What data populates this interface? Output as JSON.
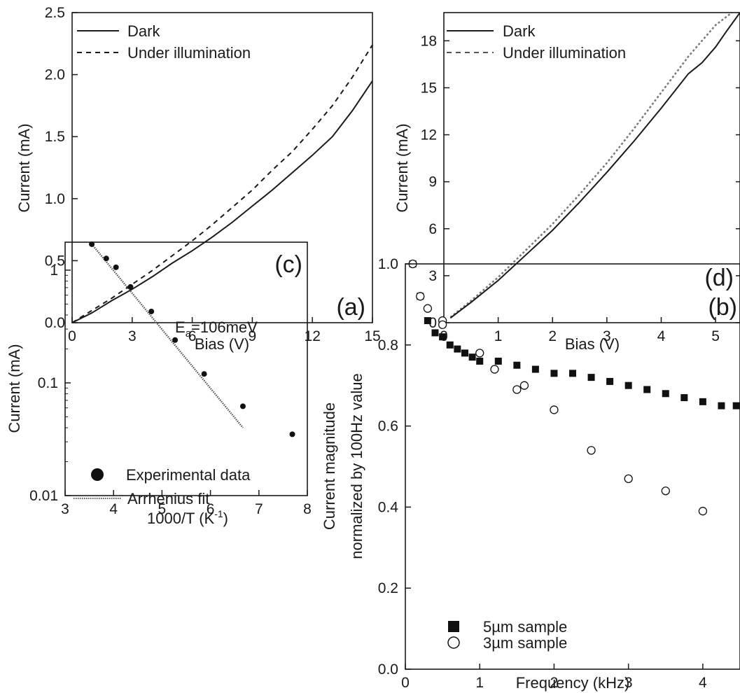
{
  "chart_data": [
    {
      "panel": "(a)",
      "type": "line",
      "xlabel": "Bias (V)",
      "ylabel": "Current (mA)",
      "xlim": [
        0,
        15
      ],
      "ylim": [
        0,
        2.5
      ],
      "xticks": [
        0,
        3,
        6,
        9,
        12,
        15
      ],
      "yticks": [
        0.0,
        0.5,
        1.0,
        1.5,
        2.0,
        2.5
      ],
      "xtick_labels": [
        "0",
        "3",
        "6",
        "9",
        "12",
        "15"
      ],
      "ytick_labels": [
        "0.0",
        "0.5",
        "1.0",
        "1.5",
        "2.0",
        "2.5"
      ],
      "legend_position": "top-left",
      "series": [
        {
          "name": "Dark",
          "style": "solid",
          "x": [
            0,
            1,
            2,
            3,
            4,
            5,
            6,
            7,
            8,
            9,
            10,
            11,
            12,
            13,
            14,
            15
          ],
          "y": [
            0,
            0.08,
            0.18,
            0.27,
            0.37,
            0.48,
            0.58,
            0.69,
            0.81,
            0.94,
            1.07,
            1.21,
            1.35,
            1.5,
            1.71,
            1.95
          ]
        },
        {
          "name": "Under illumination",
          "style": "dashed",
          "x": [
            0,
            1,
            2,
            3,
            4,
            5,
            6,
            7,
            8,
            9,
            10,
            11,
            12,
            13,
            14,
            15
          ],
          "y": [
            0,
            0.1,
            0.2,
            0.31,
            0.42,
            0.54,
            0.66,
            0.79,
            0.93,
            1.07,
            1.23,
            1.38,
            1.56,
            1.75,
            1.98,
            2.24
          ]
        }
      ]
    },
    {
      "panel": "(b)",
      "type": "line",
      "xlabel": "Bias (V)",
      "ylabel": "Current (mA)",
      "xlim": [
        0,
        5.45
      ],
      "ylim": [
        0,
        19.8
      ],
      "xticks": [
        0,
        1,
        2,
        3,
        4,
        5
      ],
      "yticks": [
        0,
        3,
        6,
        9,
        12,
        15,
        18
      ],
      "xtick_labels": [
        "0",
        "1",
        "2",
        "3",
        "4",
        "5"
      ],
      "ytick_labels": [
        "0",
        "3",
        "6",
        "9",
        "12",
        "15",
        "18"
      ],
      "legend_position": "top-left",
      "series": [
        {
          "name": "Dark",
          "style": "solid",
          "x": [
            0.12,
            0.5,
            1.0,
            1.5,
            2.0,
            2.5,
            3.0,
            3.5,
            4.0,
            4.5,
            4.75,
            5.0,
            5.2,
            5.45
          ],
          "y": [
            0.3,
            1.3,
            2.7,
            4.3,
            5.9,
            7.7,
            9.6,
            11.6,
            13.7,
            15.9,
            16.6,
            17.6,
            18.6,
            19.8
          ]
        },
        {
          "name": "Under illumination",
          "style": "dashed",
          "x": [
            0.12,
            0.5,
            1.0,
            1.5,
            2.0,
            2.5,
            3.0,
            3.5,
            4.0,
            4.5,
            5.0,
            5.3
          ],
          "y": [
            0.35,
            1.4,
            2.9,
            4.6,
            6.3,
            8.2,
            10.2,
            12.4,
            14.7,
            17.0,
            19.0,
            19.8
          ]
        }
      ]
    },
    {
      "panel": "(c)",
      "type": "scatter",
      "xlabel_main": "1000/T (K",
      "xlabel_sup": "-1",
      "xlabel_close": ")",
      "ylabel": "Current (mA)",
      "xlim": [
        3,
        8
      ],
      "ylim_log": [
        0.01,
        1.77
      ],
      "y_scale": "log",
      "xticks": [
        3,
        4,
        5,
        6,
        7,
        8
      ],
      "yticks": [
        0.01,
        0.1,
        1
      ],
      "xtick_labels": [
        "3",
        "4",
        "5",
        "6",
        "7",
        "8"
      ],
      "ytick_labels": [
        "0.01",
        "0.1",
        "1"
      ],
      "annotation_main": "E",
      "annotation_sub": "a",
      "annotation_rest": "=106meV",
      "legend_position": "bottom-left",
      "series": [
        {
          "name": "Experimental data",
          "style": "marker",
          "x": [
            3.55,
            3.85,
            4.05,
            4.35,
            4.78,
            5.27,
            5.87,
            6.67,
            7.69
          ],
          "y": [
            1.7,
            1.27,
            1.06,
            0.71,
            0.43,
            0.24,
            0.12,
            0.062,
            0.035
          ]
        },
        {
          "name": "Arrhenius fit",
          "style": "line",
          "x": [
            3.55,
            6.67
          ],
          "y": [
            1.7,
            0.04
          ]
        }
      ]
    },
    {
      "panel": "(d)",
      "type": "scatter",
      "xlabel": "Frequency (kHz)",
      "ylabel_line1": "Current magnitude",
      "ylabel_line2": "normalized by 100Hz value",
      "xlim": [
        0,
        4.5
      ],
      "ylim": [
        0,
        1.0
      ],
      "xticks": [
        0,
        1,
        2,
        3,
        4
      ],
      "yticks": [
        0.0,
        0.2,
        0.4,
        0.6,
        0.8,
        1.0
      ],
      "xtick_labels": [
        "0",
        "1",
        "2",
        "3",
        "4"
      ],
      "ytick_labels": [
        "0.0",
        "0.2",
        "0.4",
        "0.6",
        "0.8",
        "1.0"
      ],
      "legend_position": "bottom-left",
      "series": [
        {
          "name": "3µm sample",
          "style": "open-circle",
          "x": [
            0.1,
            0.2,
            0.3,
            0.5,
            0.5,
            1.0,
            1.2,
            1.5,
            1.6,
            2.0,
            2.5,
            3.0,
            3.5,
            4.0
          ],
          "y": [
            1.0,
            0.92,
            0.89,
            0.86,
            0.85,
            0.78,
            0.74,
            0.69,
            0.7,
            0.64,
            0.54,
            0.47,
            0.44,
            0.39
          ]
        },
        {
          "name": "5µm sample",
          "style": "filled-square",
          "x": [
            0.1,
            0.2,
            0.3,
            0.4,
            0.5,
            0.6,
            0.7,
            0.8,
            0.9,
            1.0,
            1.25,
            1.5,
            1.75,
            2.0,
            2.25,
            2.5,
            2.75,
            3.0,
            3.25,
            3.5,
            3.75,
            4.0,
            4.25,
            4.45
          ],
          "y": [
            1.0,
            0.92,
            0.86,
            0.83,
            0.82,
            0.8,
            0.79,
            0.78,
            0.77,
            0.76,
            0.76,
            0.75,
            0.74,
            0.73,
            0.73,
            0.72,
            0.71,
            0.7,
            0.69,
            0.68,
            0.67,
            0.66,
            0.65,
            0.65
          ]
        }
      ]
    }
  ]
}
